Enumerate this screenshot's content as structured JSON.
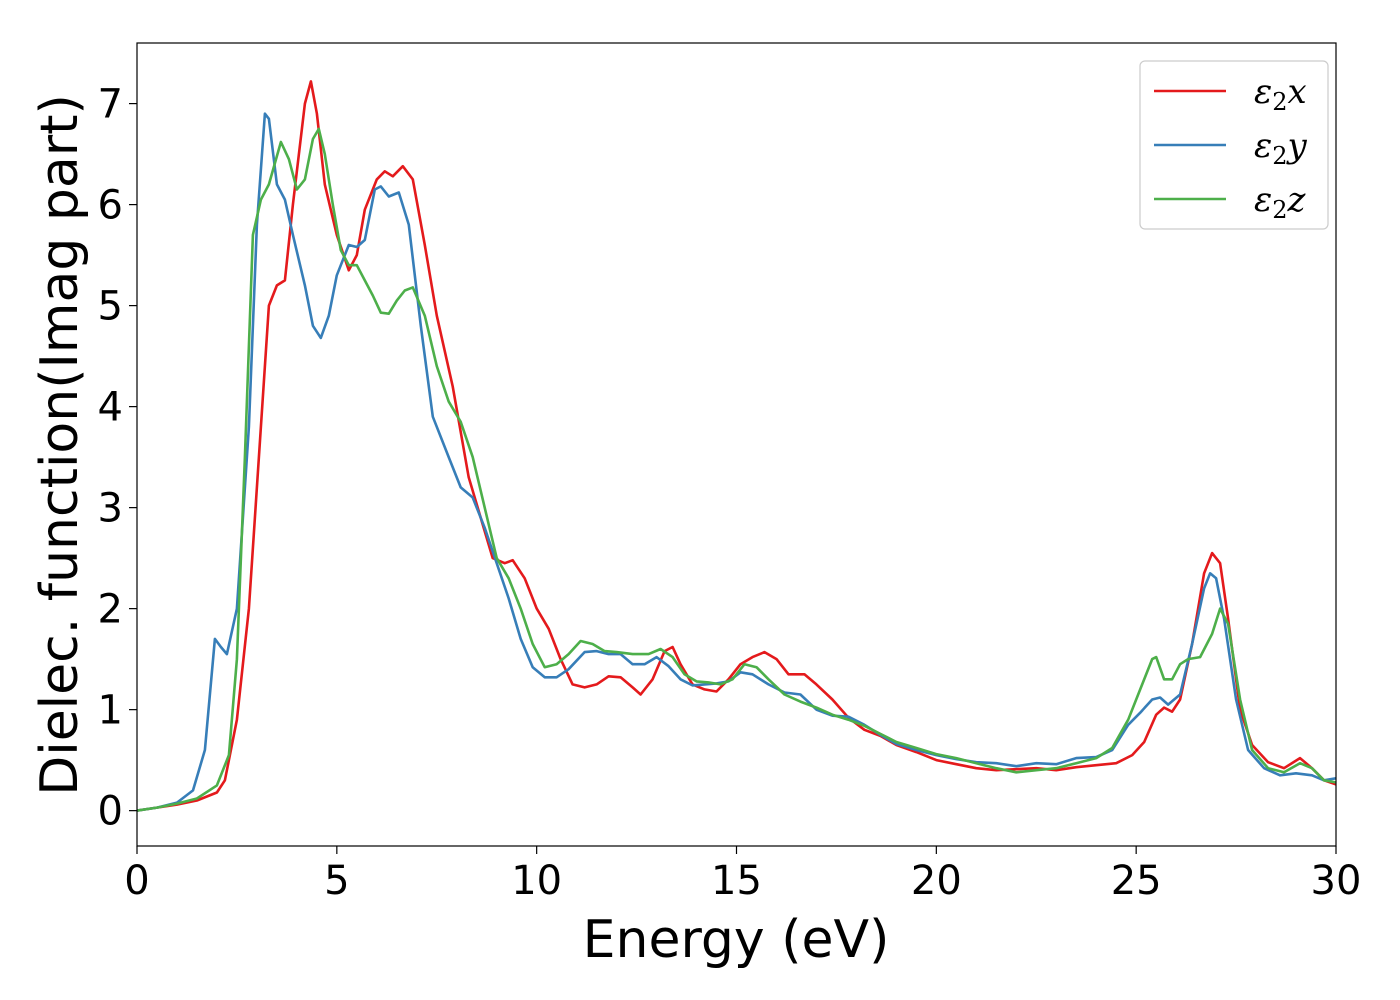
{
  "chart_data": {
    "type": "line",
    "title": "",
    "xlabel": "Energy (eV)",
    "ylabel": "Dielec. function(Imag part)",
    "xlim": [
      0,
      30
    ],
    "ylim": [
      -0.35,
      7.6
    ],
    "xticks": [
      0,
      5,
      10,
      15,
      20,
      25,
      30
    ],
    "yticks": [
      0,
      1,
      2,
      3,
      4,
      5,
      6,
      7
    ],
    "grid": false,
    "legend_position": "top-right",
    "series": [
      {
        "name": "ε2x",
        "legend_base": "ε",
        "legend_sub": "2",
        "legend_suffix": "x",
        "color": "#e41a1c",
        "points": [
          [
            0,
            0
          ],
          [
            0.5,
            0.03
          ],
          [
            1,
            0.06
          ],
          [
            1.5,
            0.1
          ],
          [
            2,
            0.18
          ],
          [
            2.2,
            0.3
          ],
          [
            2.5,
            0.9
          ],
          [
            2.8,
            2.0
          ],
          [
            3.1,
            3.8
          ],
          [
            3.3,
            5.0
          ],
          [
            3.5,
            5.2
          ],
          [
            3.7,
            5.25
          ],
          [
            3.9,
            6.0
          ],
          [
            4.2,
            7.0
          ],
          [
            4.35,
            7.22
          ],
          [
            4.5,
            6.9
          ],
          [
            4.7,
            6.2
          ],
          [
            5.0,
            5.7
          ],
          [
            5.3,
            5.35
          ],
          [
            5.5,
            5.5
          ],
          [
            5.7,
            5.95
          ],
          [
            6.0,
            6.25
          ],
          [
            6.2,
            6.33
          ],
          [
            6.4,
            6.28
          ],
          [
            6.65,
            6.38
          ],
          [
            6.9,
            6.25
          ],
          [
            7.2,
            5.6
          ],
          [
            7.5,
            4.9
          ],
          [
            7.9,
            4.2
          ],
          [
            8.3,
            3.3
          ],
          [
            8.6,
            2.9
          ],
          [
            8.9,
            2.5
          ],
          [
            9.2,
            2.45
          ],
          [
            9.4,
            2.48
          ],
          [
            9.7,
            2.3
          ],
          [
            10.0,
            2.0
          ],
          [
            10.3,
            1.8
          ],
          [
            10.6,
            1.5
          ],
          [
            10.9,
            1.25
          ],
          [
            11.2,
            1.22
          ],
          [
            11.5,
            1.25
          ],
          [
            11.8,
            1.33
          ],
          [
            12.1,
            1.32
          ],
          [
            12.4,
            1.22
          ],
          [
            12.6,
            1.15
          ],
          [
            12.9,
            1.3
          ],
          [
            13.2,
            1.58
          ],
          [
            13.4,
            1.62
          ],
          [
            13.6,
            1.45
          ],
          [
            13.9,
            1.25
          ],
          [
            14.2,
            1.2
          ],
          [
            14.5,
            1.18
          ],
          [
            14.8,
            1.3
          ],
          [
            15.1,
            1.45
          ],
          [
            15.4,
            1.52
          ],
          [
            15.7,
            1.57
          ],
          [
            16.0,
            1.5
          ],
          [
            16.3,
            1.35
          ],
          [
            16.7,
            1.35
          ],
          [
            17.0,
            1.25
          ],
          [
            17.4,
            1.1
          ],
          [
            17.8,
            0.92
          ],
          [
            18.2,
            0.8
          ],
          [
            18.6,
            0.74
          ],
          [
            19.0,
            0.65
          ],
          [
            19.5,
            0.58
          ],
          [
            20.0,
            0.5
          ],
          [
            20.5,
            0.46
          ],
          [
            21.0,
            0.42
          ],
          [
            21.5,
            0.4
          ],
          [
            22.0,
            0.41
          ],
          [
            22.5,
            0.42
          ],
          [
            23.0,
            0.4
          ],
          [
            23.5,
            0.43
          ],
          [
            24.0,
            0.45
          ],
          [
            24.5,
            0.47
          ],
          [
            24.9,
            0.55
          ],
          [
            25.2,
            0.68
          ],
          [
            25.5,
            0.95
          ],
          [
            25.7,
            1.02
          ],
          [
            25.9,
            0.98
          ],
          [
            26.1,
            1.1
          ],
          [
            26.4,
            1.65
          ],
          [
            26.7,
            2.35
          ],
          [
            26.9,
            2.55
          ],
          [
            27.1,
            2.45
          ],
          [
            27.3,
            1.9
          ],
          [
            27.6,
            1.0
          ],
          [
            27.9,
            0.65
          ],
          [
            28.3,
            0.48
          ],
          [
            28.7,
            0.42
          ],
          [
            29.1,
            0.52
          ],
          [
            29.4,
            0.42
          ],
          [
            29.7,
            0.3
          ],
          [
            30.0,
            0.26
          ]
        ]
      },
      {
        "name": "ε2y",
        "legend_base": "ε",
        "legend_sub": "2",
        "legend_suffix": "y",
        "color": "#377eb8",
        "points": [
          [
            0,
            0
          ],
          [
            0.5,
            0.03
          ],
          [
            1,
            0.08
          ],
          [
            1.4,
            0.2
          ],
          [
            1.7,
            0.6
          ],
          [
            1.95,
            1.7
          ],
          [
            2.1,
            1.62
          ],
          [
            2.25,
            1.55
          ],
          [
            2.5,
            2.0
          ],
          [
            2.8,
            3.8
          ],
          [
            3.0,
            5.8
          ],
          [
            3.2,
            6.9
          ],
          [
            3.3,
            6.85
          ],
          [
            3.5,
            6.2
          ],
          [
            3.7,
            6.05
          ],
          [
            3.9,
            5.7
          ],
          [
            4.2,
            5.2
          ],
          [
            4.4,
            4.8
          ],
          [
            4.6,
            4.68
          ],
          [
            4.8,
            4.9
          ],
          [
            5.0,
            5.3
          ],
          [
            5.3,
            5.6
          ],
          [
            5.5,
            5.58
          ],
          [
            5.7,
            5.65
          ],
          [
            5.95,
            6.15
          ],
          [
            6.1,
            6.18
          ],
          [
            6.3,
            6.08
          ],
          [
            6.55,
            6.12
          ],
          [
            6.8,
            5.8
          ],
          [
            7.1,
            4.8
          ],
          [
            7.4,
            3.9
          ],
          [
            7.8,
            3.5
          ],
          [
            8.1,
            3.2
          ],
          [
            8.4,
            3.1
          ],
          [
            8.7,
            2.8
          ],
          [
            9.0,
            2.45
          ],
          [
            9.3,
            2.1
          ],
          [
            9.6,
            1.7
          ],
          [
            9.9,
            1.42
          ],
          [
            10.2,
            1.32
          ],
          [
            10.5,
            1.32
          ],
          [
            10.8,
            1.4
          ],
          [
            11.2,
            1.57
          ],
          [
            11.5,
            1.58
          ],
          [
            11.8,
            1.55
          ],
          [
            12.1,
            1.55
          ],
          [
            12.4,
            1.45
          ],
          [
            12.7,
            1.45
          ],
          [
            13.0,
            1.52
          ],
          [
            13.3,
            1.43
          ],
          [
            13.6,
            1.3
          ],
          [
            13.9,
            1.24
          ],
          [
            14.2,
            1.25
          ],
          [
            14.5,
            1.26
          ],
          [
            14.8,
            1.28
          ],
          [
            15.1,
            1.37
          ],
          [
            15.4,
            1.35
          ],
          [
            15.8,
            1.25
          ],
          [
            16.2,
            1.17
          ],
          [
            16.6,
            1.15
          ],
          [
            17.0,
            1.0
          ],
          [
            17.4,
            0.94
          ],
          [
            17.8,
            0.93
          ],
          [
            18.2,
            0.85
          ],
          [
            18.6,
            0.75
          ],
          [
            19.0,
            0.66
          ],
          [
            19.5,
            0.6
          ],
          [
            20.0,
            0.55
          ],
          [
            20.5,
            0.51
          ],
          [
            21.0,
            0.48
          ],
          [
            21.5,
            0.47
          ],
          [
            22.0,
            0.44
          ],
          [
            22.5,
            0.47
          ],
          [
            23.0,
            0.46
          ],
          [
            23.5,
            0.52
          ],
          [
            24.0,
            0.53
          ],
          [
            24.4,
            0.6
          ],
          [
            24.8,
            0.85
          ],
          [
            25.1,
            0.97
          ],
          [
            25.4,
            1.1
          ],
          [
            25.6,
            1.12
          ],
          [
            25.8,
            1.05
          ],
          [
            26.1,
            1.15
          ],
          [
            26.4,
            1.65
          ],
          [
            26.7,
            2.2
          ],
          [
            26.85,
            2.35
          ],
          [
            27.0,
            2.3
          ],
          [
            27.2,
            1.9
          ],
          [
            27.5,
            1.1
          ],
          [
            27.8,
            0.6
          ],
          [
            28.2,
            0.42
          ],
          [
            28.6,
            0.35
          ],
          [
            29.0,
            0.37
          ],
          [
            29.4,
            0.35
          ],
          [
            29.7,
            0.3
          ],
          [
            30.0,
            0.32
          ]
        ]
      },
      {
        "name": "ε2z",
        "legend_base": "ε",
        "legend_sub": "2",
        "legend_suffix": "z",
        "color": "#4daf4a",
        "points": [
          [
            0,
            0
          ],
          [
            0.5,
            0.03
          ],
          [
            1,
            0.07
          ],
          [
            1.5,
            0.12
          ],
          [
            2.0,
            0.25
          ],
          [
            2.3,
            0.55
          ],
          [
            2.5,
            1.5
          ],
          [
            2.7,
            3.5
          ],
          [
            2.9,
            5.7
          ],
          [
            3.1,
            6.05
          ],
          [
            3.3,
            6.2
          ],
          [
            3.6,
            6.62
          ],
          [
            3.8,
            6.45
          ],
          [
            4.0,
            6.15
          ],
          [
            4.2,
            6.25
          ],
          [
            4.4,
            6.65
          ],
          [
            4.55,
            6.75
          ],
          [
            4.7,
            6.5
          ],
          [
            4.9,
            6.0
          ],
          [
            5.1,
            5.55
          ],
          [
            5.3,
            5.4
          ],
          [
            5.5,
            5.4
          ],
          [
            5.7,
            5.25
          ],
          [
            5.9,
            5.1
          ],
          [
            6.1,
            4.93
          ],
          [
            6.3,
            4.92
          ],
          [
            6.5,
            5.05
          ],
          [
            6.7,
            5.15
          ],
          [
            6.9,
            5.18
          ],
          [
            7.2,
            4.9
          ],
          [
            7.5,
            4.4
          ],
          [
            7.8,
            4.05
          ],
          [
            8.1,
            3.85
          ],
          [
            8.4,
            3.5
          ],
          [
            8.7,
            3.0
          ],
          [
            9.0,
            2.5
          ],
          [
            9.3,
            2.3
          ],
          [
            9.6,
            2.0
          ],
          [
            9.9,
            1.65
          ],
          [
            10.2,
            1.42
          ],
          [
            10.5,
            1.45
          ],
          [
            10.8,
            1.55
          ],
          [
            11.1,
            1.68
          ],
          [
            11.4,
            1.65
          ],
          [
            11.7,
            1.58
          ],
          [
            12.0,
            1.57
          ],
          [
            12.4,
            1.55
          ],
          [
            12.8,
            1.55
          ],
          [
            13.1,
            1.6
          ],
          [
            13.4,
            1.52
          ],
          [
            13.7,
            1.35
          ],
          [
            14.0,
            1.28
          ],
          [
            14.3,
            1.27
          ],
          [
            14.6,
            1.25
          ],
          [
            14.9,
            1.3
          ],
          [
            15.2,
            1.45
          ],
          [
            15.5,
            1.42
          ],
          [
            15.8,
            1.3
          ],
          [
            16.2,
            1.15
          ],
          [
            16.6,
            1.08
          ],
          [
            17.0,
            1.02
          ],
          [
            17.4,
            0.95
          ],
          [
            17.8,
            0.9
          ],
          [
            18.2,
            0.84
          ],
          [
            18.6,
            0.76
          ],
          [
            19.0,
            0.68
          ],
          [
            19.5,
            0.62
          ],
          [
            20.0,
            0.56
          ],
          [
            20.5,
            0.52
          ],
          [
            21.0,
            0.47
          ],
          [
            21.5,
            0.42
          ],
          [
            22.0,
            0.38
          ],
          [
            22.5,
            0.4
          ],
          [
            23.0,
            0.42
          ],
          [
            23.5,
            0.47
          ],
          [
            24.0,
            0.52
          ],
          [
            24.4,
            0.62
          ],
          [
            24.8,
            0.9
          ],
          [
            25.1,
            1.2
          ],
          [
            25.4,
            1.5
          ],
          [
            25.5,
            1.52
          ],
          [
            25.7,
            1.3
          ],
          [
            25.9,
            1.3
          ],
          [
            26.1,
            1.45
          ],
          [
            26.3,
            1.5
          ],
          [
            26.6,
            1.52
          ],
          [
            26.9,
            1.75
          ],
          [
            27.1,
            2.0
          ],
          [
            27.3,
            1.85
          ],
          [
            27.6,
            1.1
          ],
          [
            27.9,
            0.6
          ],
          [
            28.3,
            0.42
          ],
          [
            28.7,
            0.38
          ],
          [
            29.1,
            0.47
          ],
          [
            29.4,
            0.42
          ],
          [
            29.7,
            0.3
          ],
          [
            30.0,
            0.28
          ]
        ]
      }
    ]
  }
}
